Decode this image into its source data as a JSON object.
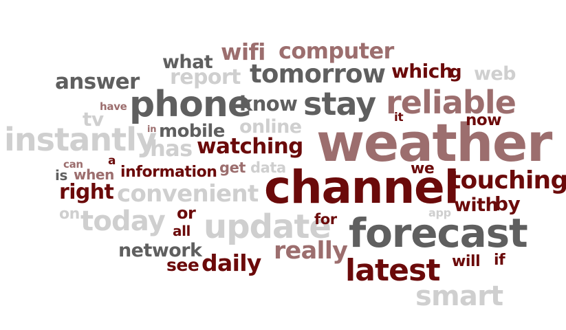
{
  "palette": {
    "dark_red": "#6b0a0a",
    "rose": "#9c6e6e",
    "dark_gray": "#5f5f5f",
    "light_gray": "#cfcfcf",
    "mid_gray": "#8a8a8a"
  },
  "words": [
    {
      "text": "weather",
      "color": "#9c6e6e"
    },
    {
      "text": "channel",
      "color": "#6b0a0a"
    },
    {
      "text": "forecast",
      "color": "#5f5f5f"
    },
    {
      "text": "phone",
      "color": "#5f5f5f"
    },
    {
      "text": "update",
      "color": "#cfcfcf"
    },
    {
      "text": "instantly",
      "color": "#cfcfcf"
    },
    {
      "text": "reliable",
      "color": "#9c6e6e"
    },
    {
      "text": "stay",
      "color": "#5f5f5f"
    },
    {
      "text": "latest",
      "color": "#6b0a0a"
    },
    {
      "text": "tomorrow",
      "color": "#5f5f5f"
    },
    {
      "text": "today",
      "color": "#cfcfcf"
    },
    {
      "text": "touching",
      "color": "#6b0a0a"
    },
    {
      "text": "convenient",
      "color": "#cfcfcf"
    },
    {
      "text": "smart",
      "color": "#cfcfcf"
    },
    {
      "text": "computer",
      "color": "#9c6e6e"
    },
    {
      "text": "really",
      "color": "#9c6e6e"
    },
    {
      "text": "watching",
      "color": "#6b0a0a"
    },
    {
      "text": "answer",
      "color": "#5f5f5f"
    },
    {
      "text": "wifi",
      "color": "#9c6e6e"
    },
    {
      "text": "daily",
      "color": "#6b0a0a"
    },
    {
      "text": "know",
      "color": "#5f5f5f"
    },
    {
      "text": "report",
      "color": "#cfcfcf"
    },
    {
      "text": "which",
      "color": "#6b0a0a"
    },
    {
      "text": "has",
      "color": "#cfcfcf"
    },
    {
      "text": "mobile",
      "color": "#5f5f5f"
    },
    {
      "text": "online",
      "color": "#cfcfcf"
    },
    {
      "text": "network",
      "color": "#5f5f5f"
    },
    {
      "text": "what",
      "color": "#5f5f5f"
    },
    {
      "text": "web",
      "color": "#cfcfcf"
    },
    {
      "text": "information",
      "color": "#6b0a0a"
    },
    {
      "text": "right",
      "color": "#6b0a0a"
    },
    {
      "text": "with",
      "color": "#6b0a0a"
    },
    {
      "text": "by",
      "color": "#6b0a0a"
    },
    {
      "text": "now",
      "color": "#6b0a0a"
    },
    {
      "text": "see",
      "color": "#6b0a0a"
    },
    {
      "text": "tv",
      "color": "#cfcfcf"
    },
    {
      "text": "when",
      "color": "#9c6e6e"
    },
    {
      "text": "or",
      "color": "#6b0a0a"
    },
    {
      "text": "all",
      "color": "#6b0a0a"
    },
    {
      "text": "for",
      "color": "#6b0a0a"
    },
    {
      "text": "will",
      "color": "#6b0a0a"
    },
    {
      "text": "if",
      "color": "#6b0a0a"
    },
    {
      "text": "we",
      "color": "#6b0a0a"
    },
    {
      "text": "get",
      "color": "#9c6e6e"
    },
    {
      "text": "data",
      "color": "#cfcfcf"
    },
    {
      "text": "on",
      "color": "#cfcfcf"
    },
    {
      "text": "is",
      "color": "#5f5f5f"
    },
    {
      "text": "g",
      "color": "#6b0a0a"
    },
    {
      "text": "it",
      "color": "#6b0a0a"
    },
    {
      "text": "app",
      "color": "#cfcfcf"
    },
    {
      "text": "have",
      "color": "#9c6e6e"
    },
    {
      "text": "can",
      "color": "#9c6e6e"
    },
    {
      "text": "a",
      "color": "#6b0a0a"
    },
    {
      "text": "in",
      "color": "#9c6e6e"
    }
  ]
}
